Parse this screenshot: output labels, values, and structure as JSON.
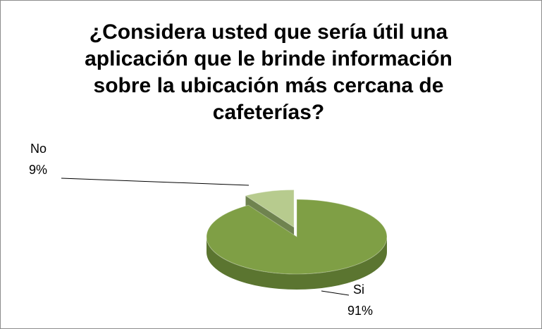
{
  "chart_data": {
    "type": "pie",
    "title": "¿Considera usted que sería útil una aplicación que le brinde información sobre la ubicación más cercana de cafeterías?",
    "categories": [
      "Si",
      "No"
    ],
    "values": [
      91,
      9
    ],
    "value_labels": [
      "91%",
      "9%"
    ],
    "colors": [
      "#7f9f45",
      "#b7cb8e"
    ],
    "side_colors": [
      "#5b7530",
      "#6f834f"
    ]
  }
}
